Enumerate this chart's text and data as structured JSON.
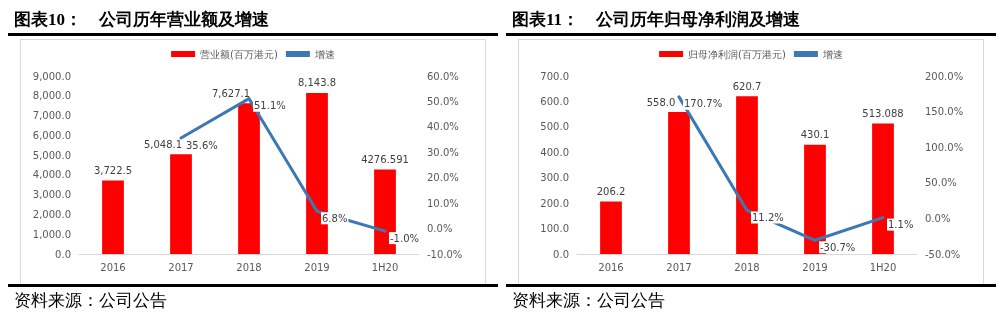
{
  "chart_data": [
    {
      "type": "bar",
      "title": "图表10：　公司历年营业额及增速",
      "categories": [
        "2016",
        "2017",
        "2018",
        "2019",
        "1H20"
      ],
      "series": [
        {
          "name": "营业额(百万港元)",
          "color": "#ff0000",
          "values": [
            3722.5,
            5048.1,
            7627.1,
            8143.8,
            4276.591
          ],
          "value_labels": [
            "3,722.5",
            "5,048.1",
            "7,627.1",
            "8,143.8",
            "4276.591"
          ]
        },
        {
          "name": "增速",
          "type": "line",
          "axis": "y2",
          "color": "#3d78b6",
          "values": [
            null,
            35.6,
            51.1,
            6.8,
            -1.0
          ],
          "value_labels": [
            null,
            "35.6%",
            "51.1%",
            "6.8%",
            "-1.0%"
          ]
        }
      ],
      "ylim": [
        0,
        9000
      ],
      "yticks": [
        {
          "value": 0,
          "label": "0.0"
        },
        {
          "value": 1000,
          "label": "1,000.0"
        },
        {
          "value": 2000,
          "label": "2,000.0"
        },
        {
          "value": 3000,
          "label": "3,000.0"
        },
        {
          "value": 4000,
          "label": "4,000.0"
        },
        {
          "value": 5000,
          "label": "5,000.0"
        },
        {
          "value": 6000,
          "label": "6,000.0"
        },
        {
          "value": 7000,
          "label": "7,000.0"
        },
        {
          "value": 8000,
          "label": "8,000.0"
        },
        {
          "value": 9000,
          "label": "9,000.0"
        }
      ],
      "y2lim": [
        -10,
        60
      ],
      "y2ticks": [
        {
          "value": -10,
          "label": "-10.0%"
        },
        {
          "value": 0,
          "label": "0.0%"
        },
        {
          "value": 10,
          "label": "10.0%"
        },
        {
          "value": 20,
          "label": "20.0%"
        },
        {
          "value": 30,
          "label": "30.0%"
        },
        {
          "value": 40,
          "label": "40.0%"
        },
        {
          "value": 50,
          "label": "50.0%"
        },
        {
          "value": 60,
          "label": "60.0%"
        }
      ],
      "legend": "top",
      "marker": "none",
      "grid": false,
      "annotations": [
        "资料来源：公司公告"
      ]
    },
    {
      "type": "bar",
      "title": "图表11：　公司历年归母净利润及增速",
      "categories": [
        "2016",
        "2017",
        "2018",
        "2019",
        "1H20"
      ],
      "series": [
        {
          "name": "归母净利润(百万港元)",
          "color": "#ff0000",
          "values": [
            206.2,
            558.0,
            620.7,
            430.1,
            513.088
          ],
          "value_labels": [
            "206.2",
            "558.0",
            "620.7",
            "430.1",
            "513.088"
          ]
        },
        {
          "name": "增速",
          "type": "line",
          "axis": "y2",
          "color": "#3d78b6",
          "values": [
            null,
            170.7,
            11.2,
            -30.7,
            1.1
          ],
          "value_labels": [
            null,
            "170.7%",
            "11.2%",
            "-30.7%",
            "1.1%"
          ]
        }
      ],
      "ylim": [
        0,
        700
      ],
      "yticks": [
        {
          "value": 0,
          "label": "0.0"
        },
        {
          "value": 100,
          "label": "100.0"
        },
        {
          "value": 200,
          "label": "200.0"
        },
        {
          "value": 300,
          "label": "300.0"
        },
        {
          "value": 400,
          "label": "400.0"
        },
        {
          "value": 500,
          "label": "500.0"
        },
        {
          "value": 600,
          "label": "600.0"
        },
        {
          "value": 700,
          "label": "700.0"
        }
      ],
      "y2lim": [
        -50,
        200
      ],
      "y2ticks": [
        {
          "value": -50,
          "label": "-50.0%"
        },
        {
          "value": 0,
          "label": "0.0%"
        },
        {
          "value": 50,
          "label": "50.0%"
        },
        {
          "value": 100,
          "label": "100.0%"
        },
        {
          "value": 150,
          "label": "150.0%"
        },
        {
          "value": 200,
          "label": "200.0%"
        }
      ],
      "legend": "top",
      "marker": "none",
      "grid": false,
      "annotations": [
        "资料来源：公司公告"
      ]
    }
  ]
}
